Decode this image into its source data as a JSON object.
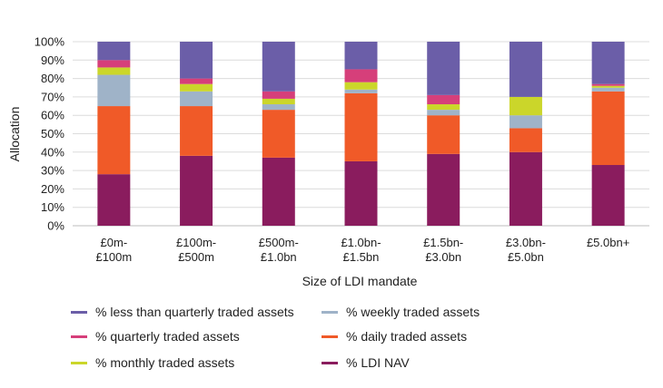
{
  "chart_data": {
    "type": "bar",
    "stacked": true,
    "title": "",
    "xlabel": "Size of LDI mandate",
    "ylabel": "Allocation",
    "ylim": [
      0,
      100
    ],
    "yticks": [
      "0%",
      "10%",
      "20%",
      "30%",
      "40%",
      "50%",
      "60%",
      "70%",
      "80%",
      "90%",
      "100%"
    ],
    "categories": [
      [
        "£0m-",
        "£100m"
      ],
      [
        "£100m-",
        "£500m"
      ],
      [
        "£500m-",
        "£1.0bn"
      ],
      [
        "£1.0bn-",
        "£1.5bn"
      ],
      [
        "£1.5bn-",
        "£3.0bn"
      ],
      [
        "£3.0bn-",
        "£5.0bn"
      ],
      [
        "£5.0bn+"
      ]
    ],
    "series": [
      {
        "name": "% LDI NAV",
        "color": "#8a1c5e",
        "values": [
          28,
          38,
          37,
          35,
          39,
          40,
          33
        ]
      },
      {
        "name": "% daily traded assets",
        "color": "#f05a28",
        "values": [
          37,
          27,
          26,
          37,
          21,
          13,
          40
        ]
      },
      {
        "name": "% weekly traded assets",
        "color": "#9fb3c8",
        "values": [
          17,
          8,
          3,
          2,
          3,
          7,
          2
        ]
      },
      {
        "name": "% monthly traded assets",
        "color": "#cbd62a",
        "values": [
          4,
          4,
          3,
          4,
          3,
          10,
          1
        ]
      },
      {
        "name": "% quarterly traded assets",
        "color": "#d63f7a",
        "values": [
          4,
          3,
          4,
          7,
          5,
          0,
          1
        ]
      },
      {
        "name": "% less than quarterly traded assets",
        "color": "#6b5ea8",
        "values": [
          10,
          20,
          27,
          15,
          29,
          30,
          23
        ]
      }
    ],
    "legend": [
      {
        "label": "% less than quarterly traded assets",
        "color": "#6b5ea8"
      },
      {
        "label": "% weekly traded assets",
        "color": "#9fb3c8"
      },
      {
        "label": "% quarterly traded assets",
        "color": "#d63f7a"
      },
      {
        "label": "% daily traded assets",
        "color": "#f05a28"
      },
      {
        "label": "% monthly traded assets",
        "color": "#cbd62a"
      },
      {
        "label": "% LDI NAV",
        "color": "#8a1c5e"
      }
    ],
    "legend_position": "bottom",
    "grid": true
  }
}
